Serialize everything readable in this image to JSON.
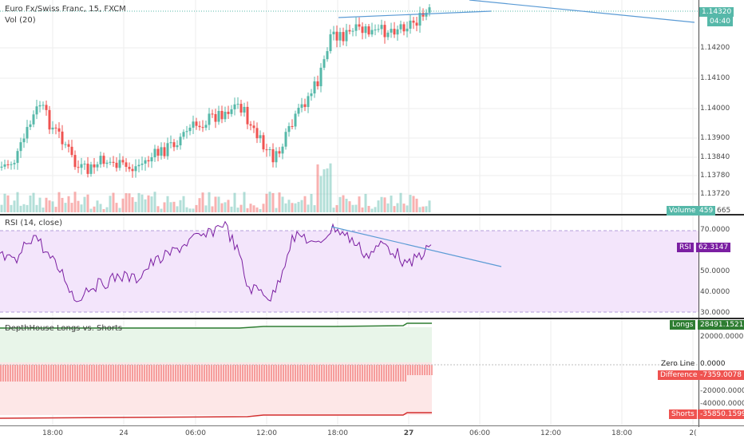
{
  "legend": {
    "symbol_title": "Euro Fx/Swiss Franc, 15, FXCM",
    "volume_title": "Vol (20)",
    "rsi_title": "RSI (14, close)",
    "depth_title": "DepthHouse Longs vs. Shorts"
  },
  "price_axis": [
    "1.14200",
    "1.14100",
    "1.14000",
    "1.13900",
    "1.13840",
    "1.13780",
    "1.13720",
    "665"
  ],
  "price_tags": {
    "last": "1.14320",
    "countdown": "04:40",
    "volume_label": "Volume",
    "volume_value": "459"
  },
  "rsi_axis": [
    "70.0000",
    "50.0000",
    "40.0000",
    "30.0000"
  ],
  "rsi_tag": {
    "label": "RSI",
    "value": "62.3147"
  },
  "depth_axis": [
    "20000.0000",
    "-20000.0000",
    "-40000.0000"
  ],
  "depth_tags": {
    "longs_label": "Longs",
    "longs_value": "28491.1521",
    "zero_label": "Zero Line",
    "zero_value": "0.0000",
    "diff_label": "Difference",
    "diff_value": "-7359.0078",
    "shorts_label": "Shorts",
    "shorts_value": "-35850.1599"
  },
  "time_axis": [
    "18:00",
    "24",
    "06:00",
    "12:00",
    "18:00",
    "27",
    "06:00",
    "12:00",
    "18:00",
    "2("
  ],
  "colors": {
    "up": "#56b8a9",
    "down": "#ef5350",
    "trend": "#5b9bd5",
    "rsi": "#7b1fa2",
    "longs": "#2e7d32",
    "shorts": "#d32f2f"
  }
}
